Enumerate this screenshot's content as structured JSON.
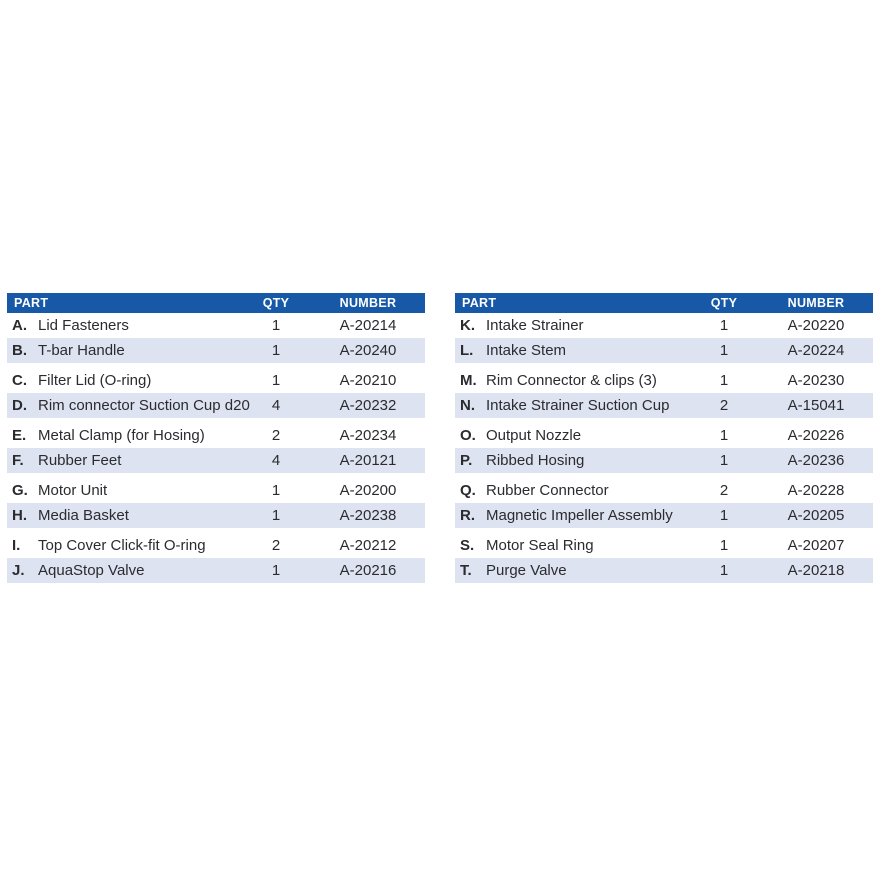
{
  "colors": {
    "header_bg": "#1759A6",
    "header_text": "#ffffff",
    "row_alt_bg": "#dde3f0",
    "body_text": "#2b2b30",
    "page_bg": "#ffffff"
  },
  "columns": {
    "part": "PART",
    "qty": "QTY",
    "number": "NUMBER"
  },
  "tables": [
    {
      "id": "left",
      "rows": [
        {
          "letter": "A.",
          "name": "Lid Fasteners",
          "qty": "1",
          "number": "A-20214"
        },
        {
          "letter": "B.",
          "name": "T-bar Handle",
          "qty": "1",
          "number": "A-20240"
        },
        {
          "letter": "C.",
          "name": "Filter Lid (O-ring)",
          "qty": "1",
          "number": "A-20210"
        },
        {
          "letter": "D.",
          "name": "Rim connector Suction Cup d20",
          "qty": "4",
          "number": "A-20232"
        },
        {
          "letter": "E.",
          "name": "Metal Clamp (for Hosing)",
          "qty": "2",
          "number": "A-20234"
        },
        {
          "letter": "F.",
          "name": "Rubber Feet",
          "qty": "4",
          "number": "A-20121"
        },
        {
          "letter": "G.",
          "name": "Motor Unit",
          "qty": "1",
          "number": "A-20200"
        },
        {
          "letter": "H.",
          "name": "Media Basket",
          "qty": "1",
          "number": "A-20238"
        },
        {
          "letter": "I.",
          "name": "Top Cover Click-fit O-ring",
          "qty": "2",
          "number": "A-20212"
        },
        {
          "letter": "J.",
          "name": "AquaStop Valve",
          "qty": "1",
          "number": "A-20216"
        }
      ]
    },
    {
      "id": "right",
      "rows": [
        {
          "letter": "K.",
          "name": "Intake Strainer",
          "qty": "1",
          "number": "A-20220"
        },
        {
          "letter": "L.",
          "name": "Intake Stem",
          "qty": "1",
          "number": "A-20224"
        },
        {
          "letter": "M.",
          "name": "Rim Connector & clips (3)",
          "qty": "1",
          "number": "A-20230"
        },
        {
          "letter": "N.",
          "name": "Intake Strainer Suction Cup",
          "qty": "2",
          "number": "A-15041"
        },
        {
          "letter": "O.",
          "name": "Output Nozzle",
          "qty": "1",
          "number": "A-20226"
        },
        {
          "letter": "P.",
          "name": "Ribbed Hosing",
          "qty": "1",
          "number": "A-20236"
        },
        {
          "letter": "Q.",
          "name": "Rubber Connector",
          "qty": "2",
          "number": "A-20228"
        },
        {
          "letter": "R.",
          "name": "Magnetic Impeller Assembly",
          "qty": "1",
          "number": "A-20205"
        },
        {
          "letter": "S.",
          "name": "Motor Seal Ring",
          "qty": "1",
          "number": "A-20207"
        },
        {
          "letter": "T.",
          "name": "Purge Valve",
          "qty": "1",
          "number": "A-20218"
        }
      ]
    }
  ]
}
